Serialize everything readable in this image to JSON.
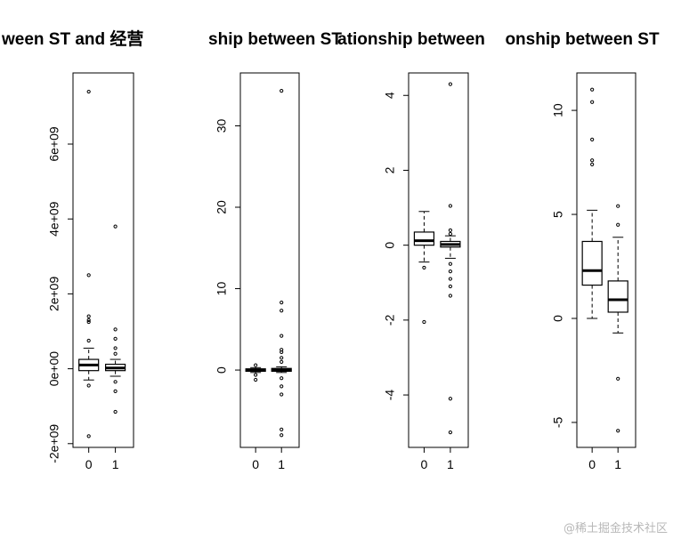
{
  "titles": [
    "ween ST and  经营",
    "ship between ST",
    "ationship between",
    "onship between ST"
  ],
  "watermark": "@稀土掘金技术社区",
  "chart_data": [
    {
      "type": "boxplot",
      "title": "ween ST and  经营",
      "categories": [
        "0",
        "1"
      ],
      "ylim": [
        -2100000000.0,
        7900000000.0
      ],
      "yticks": [
        -2000000000.0,
        0,
        2000000000.0,
        4000000000.0,
        6000000000.0
      ],
      "ytick_labels": [
        "-2e+09",
        "0e+00",
        "2e+09",
        "4e+09",
        "6e+09"
      ],
      "series": [
        {
          "category": "0",
          "whisker_low": -300000000.0,
          "q1": -50000000.0,
          "median": 100000000.0,
          "q3": 250000000.0,
          "whisker_high": 550000000.0,
          "outliers": [
            7400000000.0,
            2500000000.0,
            1400000000.0,
            1300000000.0,
            1250000000.0,
            750000000.0,
            -450000000.0,
            -1800000000.0
          ]
        },
        {
          "category": "1",
          "whisker_low": -200000000.0,
          "q1": -50000000.0,
          "median": 20000000.0,
          "q3": 120000000.0,
          "whisker_high": 250000000.0,
          "outliers": [
            3800000000.0,
            1050000000.0,
            800000000.0,
            550000000.0,
            400000000.0,
            -350000000.0,
            -600000000.0,
            -1150000000.0
          ]
        }
      ]
    },
    {
      "type": "boxplot",
      "title": "ship between ST",
      "categories": [
        "0",
        "1"
      ],
      "ylim": [
        -9.5,
        36.5
      ],
      "yticks": [
        0,
        10,
        20,
        30
      ],
      "ytick_labels": [
        "0",
        "10",
        "20",
        "30"
      ],
      "series": [
        {
          "category": "0",
          "whisker_low": -0.3,
          "q1": -0.15,
          "median": 0.0,
          "q3": 0.15,
          "whisker_high": 0.3,
          "outliers": [
            0.6,
            -0.6,
            -1.2
          ]
        },
        {
          "category": "1",
          "whisker_low": -0.3,
          "q1": -0.15,
          "median": 0.0,
          "q3": 0.2,
          "whisker_high": 0.4,
          "outliers": [
            34.3,
            8.3,
            7.3,
            4.2,
            2.5,
            2.2,
            1.5,
            1.0,
            -1.0,
            -2.0,
            -3.0,
            -7.3,
            -8.0
          ]
        }
      ]
    },
    {
      "type": "boxplot",
      "title": "ationship between",
      "categories": [
        "0",
        "1"
      ],
      "ylim": [
        -5.4,
        4.6
      ],
      "yticks": [
        -4,
        -2,
        0,
        2,
        4
      ],
      "ytick_labels": [
        "-4",
        "-2",
        "0",
        "2",
        "4"
      ],
      "series": [
        {
          "category": "0",
          "whisker_low": -0.45,
          "q1": 0.0,
          "median": 0.12,
          "q3": 0.35,
          "whisker_high": 0.9,
          "outliers": [
            -0.6,
            -2.05
          ]
        },
        {
          "category": "1",
          "whisker_low": -0.35,
          "q1": -0.05,
          "median": 0.02,
          "q3": 0.1,
          "whisker_high": 0.25,
          "outliers": [
            4.3,
            1.05,
            0.4,
            0.3,
            -0.5,
            -0.7,
            -0.9,
            -1.1,
            -1.35,
            -4.1,
            -5.0
          ]
        }
      ]
    },
    {
      "type": "boxplot",
      "title": "onship between ST",
      "categories": [
        "0",
        "1"
      ],
      "ylim": [
        -6.2,
        11.8
      ],
      "yticks": [
        -5,
        0,
        5,
        10
      ],
      "ytick_labels": [
        "-5",
        "0",
        "5",
        "10"
      ],
      "series": [
        {
          "category": "0",
          "whisker_low": 0.0,
          "q1": 1.6,
          "median": 2.3,
          "q3": 3.7,
          "whisker_high": 5.2,
          "outliers": [
            11.0,
            10.4,
            8.6,
            7.6,
            7.4
          ]
        },
        {
          "category": "1",
          "whisker_low": -0.7,
          "q1": 0.3,
          "median": 0.9,
          "q3": 1.8,
          "whisker_high": 3.9,
          "outliers": [
            5.4,
            4.5,
            -2.9,
            -5.4
          ]
        }
      ]
    }
  ]
}
